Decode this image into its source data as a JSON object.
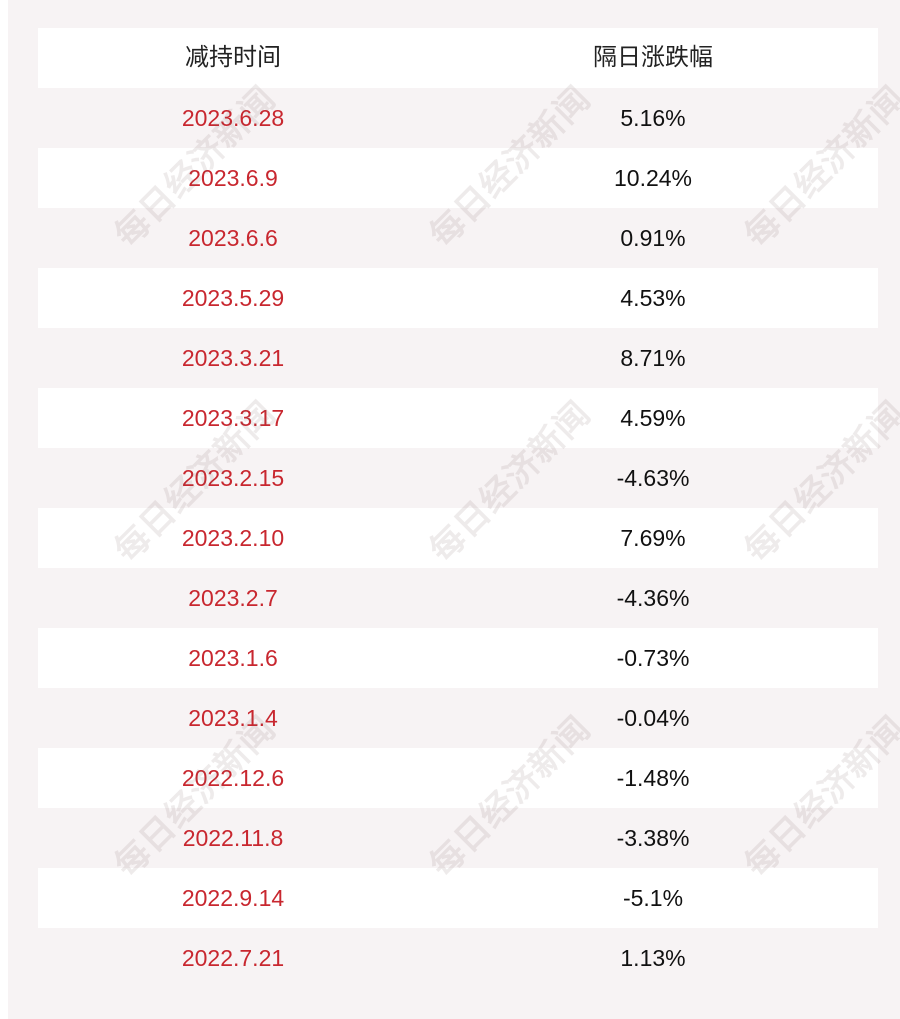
{
  "table": {
    "headers": {
      "date": "减持时间",
      "change": "隔日涨跌幅"
    },
    "rows": [
      {
        "date": "2023.6.28",
        "change": "5.16%"
      },
      {
        "date": "2023.6.9",
        "change": "10.24%"
      },
      {
        "date": "2023.6.6",
        "change": "0.91%"
      },
      {
        "date": "2023.5.29",
        "change": "4.53%"
      },
      {
        "date": "2023.3.21",
        "change": "8.71%"
      },
      {
        "date": "2023.3.17",
        "change": "4.59%"
      },
      {
        "date": "2023.2.15",
        "change": "-4.63%"
      },
      {
        "date": "2023.2.10",
        "change": "7.69%"
      },
      {
        "date": "2023.2.7",
        "change": "-4.36%"
      },
      {
        "date": "2023.1.6",
        "change": "-0.73%"
      },
      {
        "date": "2023.1.4",
        "change": "-0.04%"
      },
      {
        "date": "2022.12.6",
        "change": "-1.48%"
      },
      {
        "date": "2022.11.8",
        "change": "-3.38%"
      },
      {
        "date": "2022.9.14",
        "change": "-5.1%"
      },
      {
        "date": "2022.7.21",
        "change": "1.13%"
      }
    ]
  },
  "watermark": "每日经济新闻",
  "colors": {
    "date_text": "#c8272f",
    "change_text": "#111111",
    "stripe_white": "#ffffff",
    "stripe_tint": "#f7f3f4"
  }
}
